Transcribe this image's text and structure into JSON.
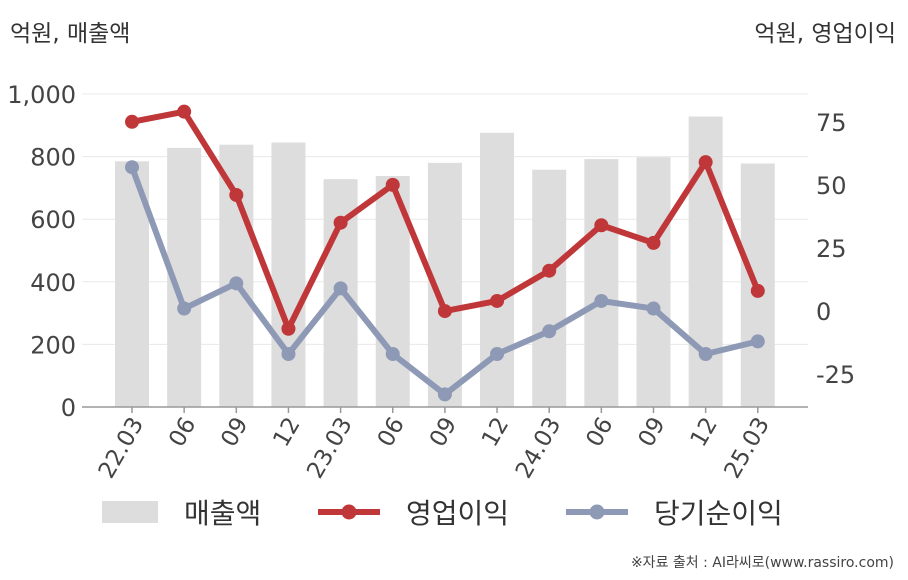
{
  "chart_data": {
    "type": "bar+line",
    "categories": [
      "22.03",
      "06",
      "09",
      "12",
      "23.03",
      "06",
      "09",
      "12",
      "24.03",
      "06",
      "09",
      "12",
      "25.03"
    ],
    "left_axis_label": "억원, 매출액",
    "right_axis_label": "억원, 영업이익",
    "left_ylim": [
      0,
      1000
    ],
    "left_ticks": [
      0,
      200,
      400,
      600,
      800,
      1000
    ],
    "left_tick_labels": [
      "0",
      "200",
      "400",
      "600",
      "800",
      "1,000"
    ],
    "right_ylim": [
      -38,
      86
    ],
    "right_ticks": [
      -25,
      0,
      25,
      50,
      75
    ],
    "right_tick_labels": [
      "-25",
      "0",
      "25",
      "50",
      "75"
    ],
    "grid": true,
    "legend_position": "bottom",
    "series": [
      {
        "name": "매출액",
        "kind": "bar",
        "axis": "left",
        "color": "#dddddd",
        "values": [
          785,
          828,
          838,
          845,
          728,
          738,
          780,
          876,
          758,
          792,
          798,
          928,
          778
        ]
      },
      {
        "name": "영업이익",
        "kind": "line",
        "axis": "right",
        "color": "#c0373a",
        "values": [
          75,
          79,
          46,
          -7,
          35,
          50,
          0,
          4,
          16,
          34,
          27,
          59,
          8
        ]
      },
      {
        "name": "당기순이익",
        "kind": "line",
        "axis": "right",
        "color": "#8e9ab5",
        "values": [
          57,
          1,
          11,
          -17,
          9,
          -17,
          -33,
          -17,
          -8,
          4,
          1,
          -17,
          -12
        ]
      }
    ]
  },
  "source": "※자료 출처 : AI라씨로(www.rassiro.com)"
}
